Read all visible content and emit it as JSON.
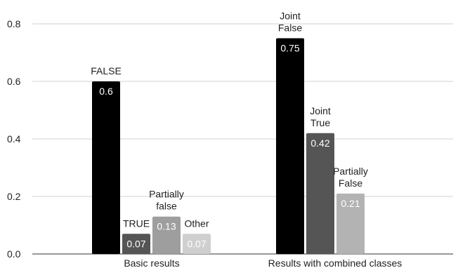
{
  "chart_data": {
    "type": "bar",
    "ylim": [
      0,
      0.8
    ],
    "yticks": [
      "0.0",
      "0.2",
      "0.4",
      "0.6",
      "0.8"
    ],
    "grid": true,
    "groups": [
      {
        "label": "Basic results",
        "bars": [
          {
            "name": "FALSE",
            "value": 0.6,
            "value_label": "0.6",
            "color": "#000000"
          },
          {
            "name": "TRUE",
            "value": 0.07,
            "value_label": "0.07",
            "color": "#555555"
          },
          {
            "name": "Partially false",
            "value": 0.13,
            "value_label": "0.13",
            "color": "#9e9e9e"
          },
          {
            "name": "Other",
            "value": 0.07,
            "value_label": "0.07",
            "color": "#cfcfcf"
          }
        ]
      },
      {
        "label": "Results with combined classes",
        "bars": [
          {
            "name": "Joint False",
            "value": 0.75,
            "value_label": "0.75",
            "color": "#000000"
          },
          {
            "name": "Joint True",
            "value": 0.42,
            "value_label": "0.42",
            "color": "#555555"
          },
          {
            "name": "Partially False",
            "value": 0.21,
            "value_label": "0.21",
            "color": "#b3b3b3"
          }
        ]
      }
    ]
  }
}
